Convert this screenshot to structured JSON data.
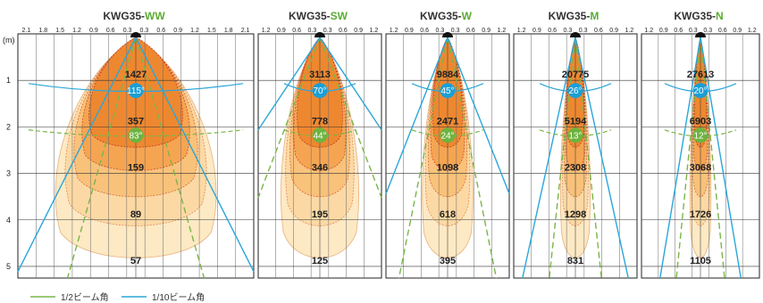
{
  "unit_label": "(m)",
  "distances": [
    "1",
    "2",
    "3",
    "4",
    "5"
  ],
  "colors": {
    "half_beam": "#7ab648",
    "tenth_beam": "#2aa6d9",
    "badge_half": "#6db33f",
    "badge_tenth": "#1a9fd6",
    "suffix": "#5aad32"
  },
  "panels": [
    {
      "name": "ww",
      "model": "KWG35-",
      "suffix": "WW",
      "ticks": [
        "2.1",
        "1.8",
        "1.5",
        "1.2",
        "0.9",
        "0.6",
        "0.3",
        "0.3",
        "0.6",
        "0.9",
        "1.2",
        "1.5",
        "1.8",
        "2.1"
      ],
      "values": [
        "1427",
        "357",
        "159",
        "89",
        "57"
      ],
      "tenth_angle": "115°",
      "half_angle": "83°"
    },
    {
      "name": "sw",
      "model": "KWG35-",
      "suffix": "SW",
      "ticks": [
        "1.2",
        "0.9",
        "0.6",
        "0.3",
        "0.3",
        "0.6",
        "0.9",
        "1.2"
      ],
      "values": [
        "3113",
        "778",
        "346",
        "195",
        "125"
      ],
      "tenth_angle": "70°",
      "half_angle": "44°"
    },
    {
      "name": "w",
      "model": "KWG35-",
      "suffix": "W",
      "ticks": [
        "1.2",
        "0.9",
        "0.6",
        "0.3",
        "0.3",
        "0.6",
        "0.9",
        "1.2"
      ],
      "values": [
        "9884",
        "2471",
        "1098",
        "618",
        "395"
      ],
      "tenth_angle": "45°",
      "half_angle": "24°"
    },
    {
      "name": "m",
      "model": "KWG35-",
      "suffix": "M",
      "ticks": [
        "1.2",
        "0.9",
        "0.6",
        "0.3",
        "0.3",
        "0.6",
        "0.9",
        "1.2"
      ],
      "values": [
        "20775",
        "5194",
        "2308",
        "1298",
        "831"
      ],
      "tenth_angle": "26°",
      "half_angle": "13°"
    },
    {
      "name": "n",
      "model": "KWG35-",
      "suffix": "N",
      "ticks": [
        "1.2",
        "0.9",
        "0.6",
        "0.3",
        "0.3",
        "0.6",
        "0.9",
        "1.2"
      ],
      "values": [
        "27613",
        "6903",
        "3068",
        "1726",
        "1105"
      ],
      "tenth_angle": "20°",
      "half_angle": "12°"
    }
  ],
  "legend": {
    "half": "1/2ビーム角",
    "tenth": "1/10ビーム角"
  }
}
